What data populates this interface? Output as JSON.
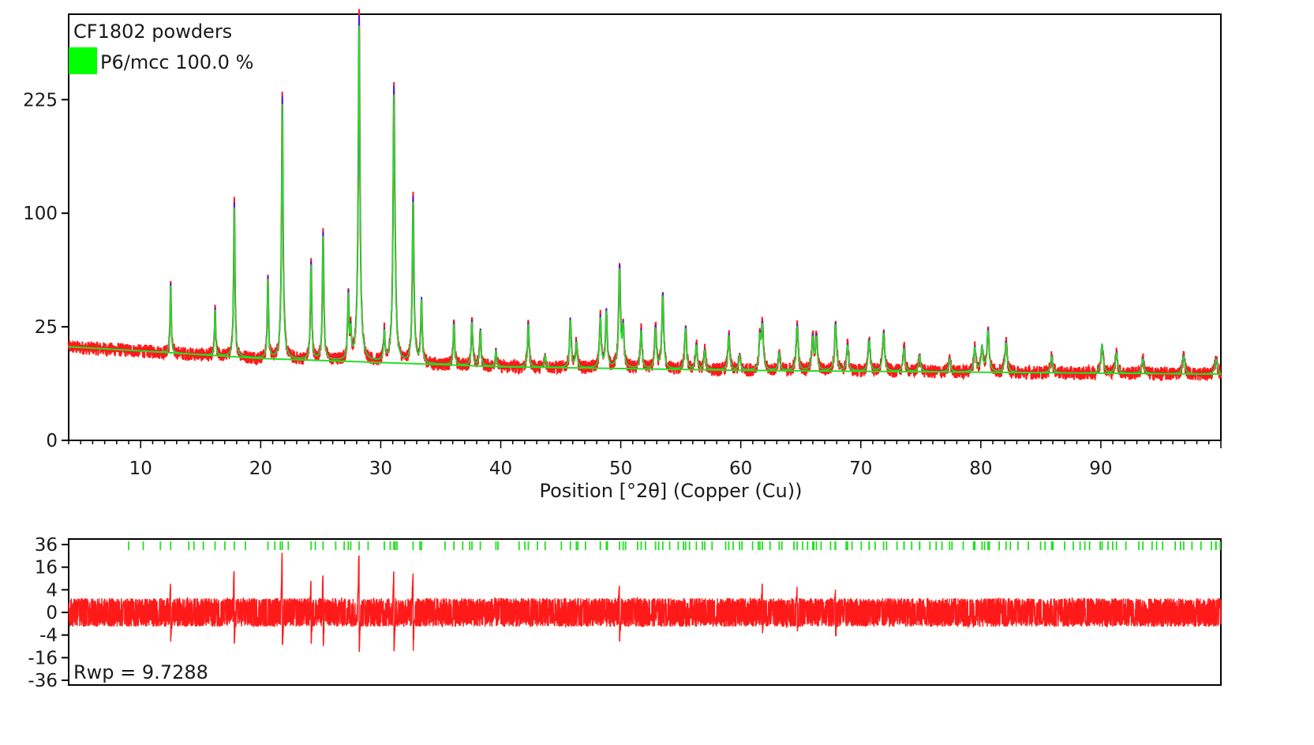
{
  "chart_data": [
    {
      "type": "line",
      "title": "CF1802 powders",
      "xlabel": "Position [°2θ] (Copper (Cu))",
      "ylabel": "",
      "y_scale": "sqrt",
      "xlim": [
        4,
        100
      ],
      "ylim": [
        0,
        352
      ],
      "x_ticks": [
        10,
        20,
        30,
        40,
        50,
        60,
        70,
        80,
        90
      ],
      "y_ticks": [
        0,
        25,
        100,
        225
      ],
      "grid": false,
      "legend": {
        "position": "top-left",
        "entries": [
          {
            "label": "P6/mcc 100.0 %",
            "color": "#00ff00"
          }
        ]
      },
      "series": [
        {
          "name": "",
          "role": "observed",
          "color": "#ff1a1a"
        },
        {
          "name": "",
          "role": "calculated",
          "color": "#2020ff"
        },
        {
          "name": "",
          "role": "fit",
          "color": "#22e022"
        }
      ],
      "background": {
        "x": [
          4,
          20,
          40,
          60,
          80,
          100
        ],
        "y": [
          17,
          13,
          10.5,
          9.5,
          9,
          8.5
        ]
      },
      "peaks": [
        {
          "x": 12.5,
          "y": 48
        },
        {
          "x": 16.2,
          "y": 34
        },
        {
          "x": 17.8,
          "y": 110
        },
        {
          "x": 20.6,
          "y": 52
        },
        {
          "x": 21.8,
          "y": 230
        },
        {
          "x": 24.2,
          "y": 62
        },
        {
          "x": 25.2,
          "y": 84
        },
        {
          "x": 27.3,
          "y": 42
        },
        {
          "x": 27.5,
          "y": 23
        },
        {
          "x": 28.2,
          "y": 350
        },
        {
          "x": 30.3,
          "y": 23
        },
        {
          "x": 31.1,
          "y": 237
        },
        {
          "x": 31.2,
          "y": 36
        },
        {
          "x": 32.7,
          "y": 115
        },
        {
          "x": 33.4,
          "y": 39
        },
        {
          "x": 36.1,
          "y": 27
        },
        {
          "x": 37.6,
          "y": 28
        },
        {
          "x": 38.3,
          "y": 24
        },
        {
          "x": 39.6,
          "y": 16
        },
        {
          "x": 42.3,
          "y": 27
        },
        {
          "x": 43.7,
          "y": 14
        },
        {
          "x": 45.8,
          "y": 29
        },
        {
          "x": 46.3,
          "y": 19
        },
        {
          "x": 48.3,
          "y": 30
        },
        {
          "x": 48.8,
          "y": 33
        },
        {
          "x": 49.9,
          "y": 59
        },
        {
          "x": 50.2,
          "y": 25
        },
        {
          "x": 51.7,
          "y": 24
        },
        {
          "x": 52.9,
          "y": 25
        },
        {
          "x": 53.5,
          "y": 42
        },
        {
          "x": 55.4,
          "y": 25
        },
        {
          "x": 56.3,
          "y": 18
        },
        {
          "x": 57.0,
          "y": 16
        },
        {
          "x": 59.0,
          "y": 22
        },
        {
          "x": 59.9,
          "y": 14
        },
        {
          "x": 61.6,
          "y": 21
        },
        {
          "x": 61.8,
          "y": 26
        },
        {
          "x": 63.2,
          "y": 15
        },
        {
          "x": 64.7,
          "y": 26
        },
        {
          "x": 66.0,
          "y": 21
        },
        {
          "x": 66.3,
          "y": 21
        },
        {
          "x": 67.9,
          "y": 27
        },
        {
          "x": 68.9,
          "y": 18
        },
        {
          "x": 70.7,
          "y": 20
        },
        {
          "x": 71.9,
          "y": 23
        },
        {
          "x": 73.6,
          "y": 17
        },
        {
          "x": 74.9,
          "y": 14
        },
        {
          "x": 77.4,
          "y": 13
        },
        {
          "x": 79.5,
          "y": 17
        },
        {
          "x": 80.1,
          "y": 17
        },
        {
          "x": 80.6,
          "y": 24
        },
        {
          "x": 82.1,
          "y": 19
        },
        {
          "x": 85.9,
          "y": 14
        },
        {
          "x": 90.1,
          "y": 18
        },
        {
          "x": 91.3,
          "y": 15
        },
        {
          "x": 93.5,
          "y": 13
        },
        {
          "x": 96.9,
          "y": 14
        },
        {
          "x": 99.6,
          "y": 13
        }
      ]
    },
    {
      "type": "line",
      "title": "",
      "xlabel": "",
      "ylabel": "",
      "y_scale": "sqrt",
      "xlim": [
        4,
        100
      ],
      "ylim": [
        -36,
        36
      ],
      "y_ticks": [
        36,
        16,
        4,
        0,
        -4,
        -16,
        -36
      ],
      "series": [
        {
          "name": "",
          "role": "difference",
          "color": "#ff1a1a"
        },
        {
          "name": "",
          "role": "reflection-markers",
          "color": "#22e022"
        }
      ],
      "difference_spikes": [
        {
          "x": 12.5,
          "y": 8,
          "y_min": -7
        },
        {
          "x": 17.8,
          "y": 17,
          "y_min": -8
        },
        {
          "x": 21.8,
          "y": 34,
          "y_min": -10
        },
        {
          "x": 24.2,
          "y": 10,
          "y_min": -8
        },
        {
          "x": 25.2,
          "y": 12,
          "y_min": -11
        },
        {
          "x": 28.2,
          "y": 36,
          "y_min": -14
        },
        {
          "x": 31.1,
          "y": 15,
          "y_min": -15
        },
        {
          "x": 32.7,
          "y": 14,
          "y_min": -11
        },
        {
          "x": 49.9,
          "y": 7,
          "y_min": -7
        },
        {
          "x": 61.8,
          "y": 8,
          "y_min": -4
        },
        {
          "x": 64.7,
          "y": 6,
          "y_min": -3
        },
        {
          "x": 67.9,
          "y": 5,
          "y_min": -5
        }
      ],
      "annotation": "Rwp = 9.7288"
    }
  ]
}
